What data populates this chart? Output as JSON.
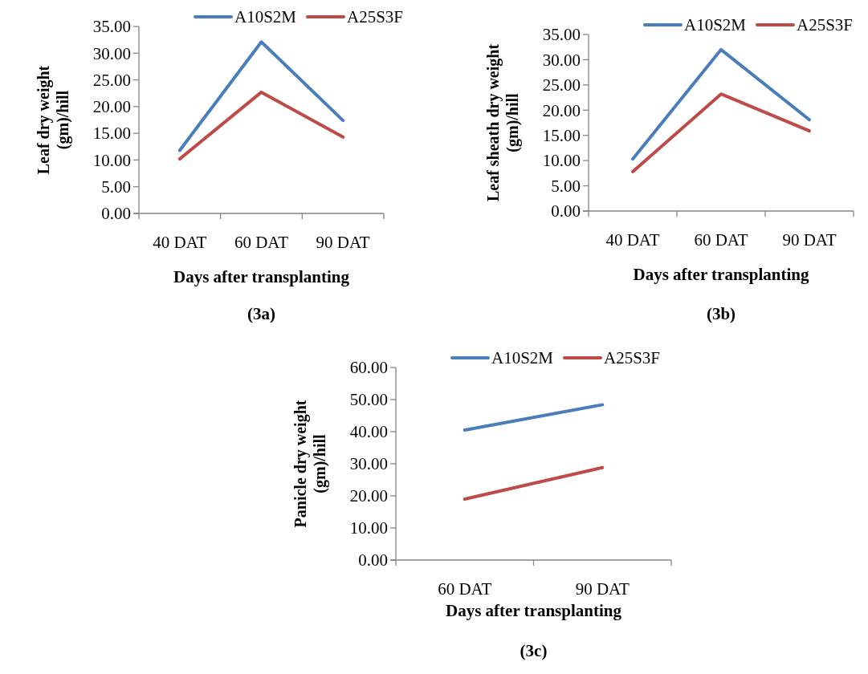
{
  "chart_data": [
    {
      "type": "line",
      "xlabel": "Days after transplanting",
      "ylabel": "Leaf dry weight (gm)/hill",
      "annotations": [
        "(3a)"
      ],
      "categories": [
        "40 DAT",
        "60 DAT",
        "90 DAT"
      ],
      "legend": "top",
      "grid": false,
      "ylim": [
        0,
        35
      ],
      "yticks": [
        {
          "value": 0,
          "label": "0.00"
        },
        {
          "value": 5,
          "label": "5.00"
        },
        {
          "value": 10,
          "label": "10.00"
        },
        {
          "value": 15,
          "label": "15.00"
        },
        {
          "value": 20,
          "label": "20.00"
        },
        {
          "value": 25,
          "label": "25.00"
        },
        {
          "value": 30,
          "label": "30.00"
        },
        {
          "value": 35,
          "label": "35.00"
        }
      ],
      "series": [
        {
          "name": "A10S2M",
          "color": "#4a7ebb",
          "values": [
            11.8,
            32.1,
            17.4
          ]
        },
        {
          "name": "A25S3F",
          "color": "#be4b48",
          "values": [
            10.2,
            22.7,
            14.3
          ]
        }
      ]
    },
    {
      "type": "line",
      "xlabel": "Days after transplanting",
      "ylabel": "Leaf sheath dry weight (gm)/hill",
      "annotations": [
        "(3b)"
      ],
      "categories": [
        "40 DAT",
        "60 DAT",
        "90 DAT"
      ],
      "legend": "top",
      "grid": false,
      "ylim": [
        0,
        35
      ],
      "yticks": [
        {
          "value": 0,
          "label": "0.00"
        },
        {
          "value": 5,
          "label": "5.00"
        },
        {
          "value": 10,
          "label": "10.00"
        },
        {
          "value": 15,
          "label": "15.00"
        },
        {
          "value": 20,
          "label": "20.00"
        },
        {
          "value": 25,
          "label": "25.00"
        },
        {
          "value": 30,
          "label": "30.00"
        },
        {
          "value": 35,
          "label": "35.00"
        }
      ],
      "series": [
        {
          "name": "A10S2M",
          "color": "#4a7ebb",
          "values": [
            10.3,
            32.0,
            18.1
          ]
        },
        {
          "name": "A25S3F",
          "color": "#be4b48",
          "values": [
            7.8,
            23.2,
            15.9
          ]
        }
      ]
    },
    {
      "type": "line",
      "xlabel": "Days after transplanting",
      "ylabel": "Panicle dry weight (gm)/hill",
      "annotations": [
        "(3c)"
      ],
      "categories": [
        "60 DAT",
        "90 DAT"
      ],
      "legend": "top",
      "grid": false,
      "ylim": [
        0,
        60
      ],
      "yticks": [
        {
          "value": 0,
          "label": "0.00"
        },
        {
          "value": 10,
          "label": "10.00"
        },
        {
          "value": 20,
          "label": "20.00"
        },
        {
          "value": 30,
          "label": "30.00"
        },
        {
          "value": 40,
          "label": "40.00"
        },
        {
          "value": 50,
          "label": "50.00"
        },
        {
          "value": 60,
          "label": "60.00"
        }
      ],
      "series": [
        {
          "name": "A10S2M",
          "color": "#4a7ebb",
          "values": [
            40.5,
            48.4
          ]
        },
        {
          "name": "A25S3F",
          "color": "#be4b48",
          "values": [
            19.0,
            28.8
          ]
        }
      ]
    }
  ]
}
